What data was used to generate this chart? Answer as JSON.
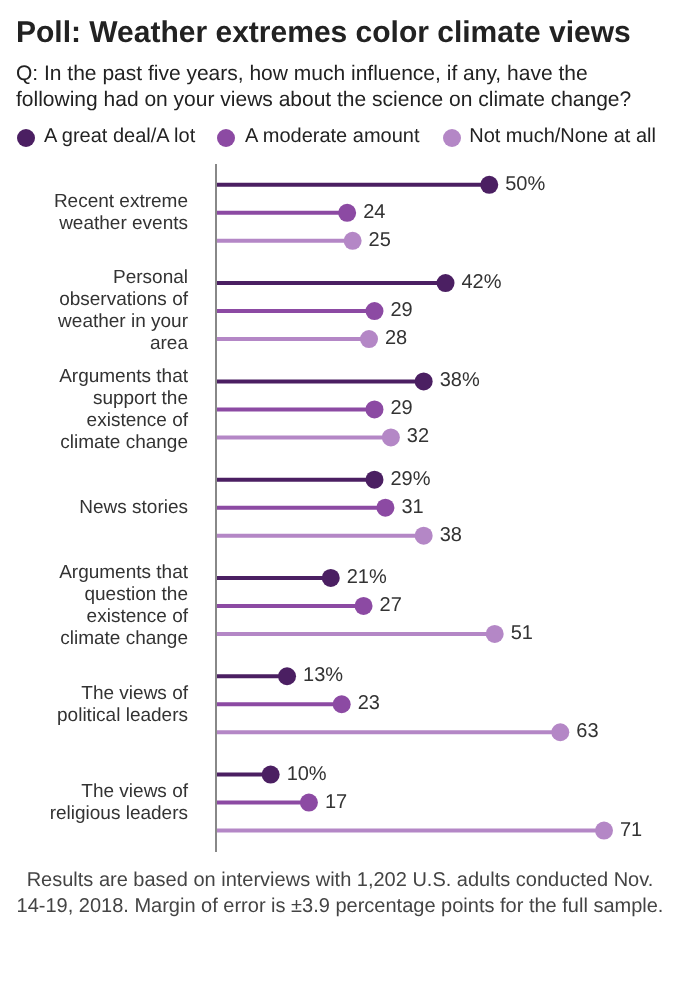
{
  "chart_data": {
    "type": "lollipop",
    "orientation": "horizontal",
    "title": "Poll: Weather extremes color climate views",
    "subtitle": "Q: In the past five years, how much influence, if any, have the following had on your views about the science on climate change?",
    "categories": [
      "Recent extreme weather events",
      "Personal observations of weather in your area",
      "Arguments that support the existence of climate change",
      "News stories",
      "Arguments that question the existence of climate change",
      "The views of political leaders",
      "The views of religious leaders"
    ],
    "series": [
      {
        "name": "A great deal/A lot",
        "color": "#4b1f62",
        "values": [
          50,
          42,
          38,
          29,
          21,
          13,
          10
        ],
        "value_labels": [
          "50%",
          "42%",
          "38%",
          "29%",
          "21%",
          "13%",
          "10%"
        ]
      },
      {
        "name": "A moderate amount",
        "color": "#8c4aa3",
        "values": [
          24,
          29,
          29,
          31,
          27,
          23,
          17
        ],
        "value_labels": [
          "24",
          "29",
          "29",
          "31",
          "27",
          "23",
          "17"
        ]
      },
      {
        "name": "Not much/None at all",
        "color": "#b487c6",
        "values": [
          25,
          28,
          32,
          38,
          51,
          63,
          71
        ],
        "value_labels": [
          "25",
          "28",
          "32",
          "38",
          "51",
          "63",
          "71"
        ]
      }
    ],
    "legend": "top",
    "marker": "circle",
    "annotations": [
      "Results are based on interviews with 1,202 U.S. adults conducted Nov. 14-19, 2018. Margin of error is ±3.9 percentage points for the full sample."
    ]
  }
}
